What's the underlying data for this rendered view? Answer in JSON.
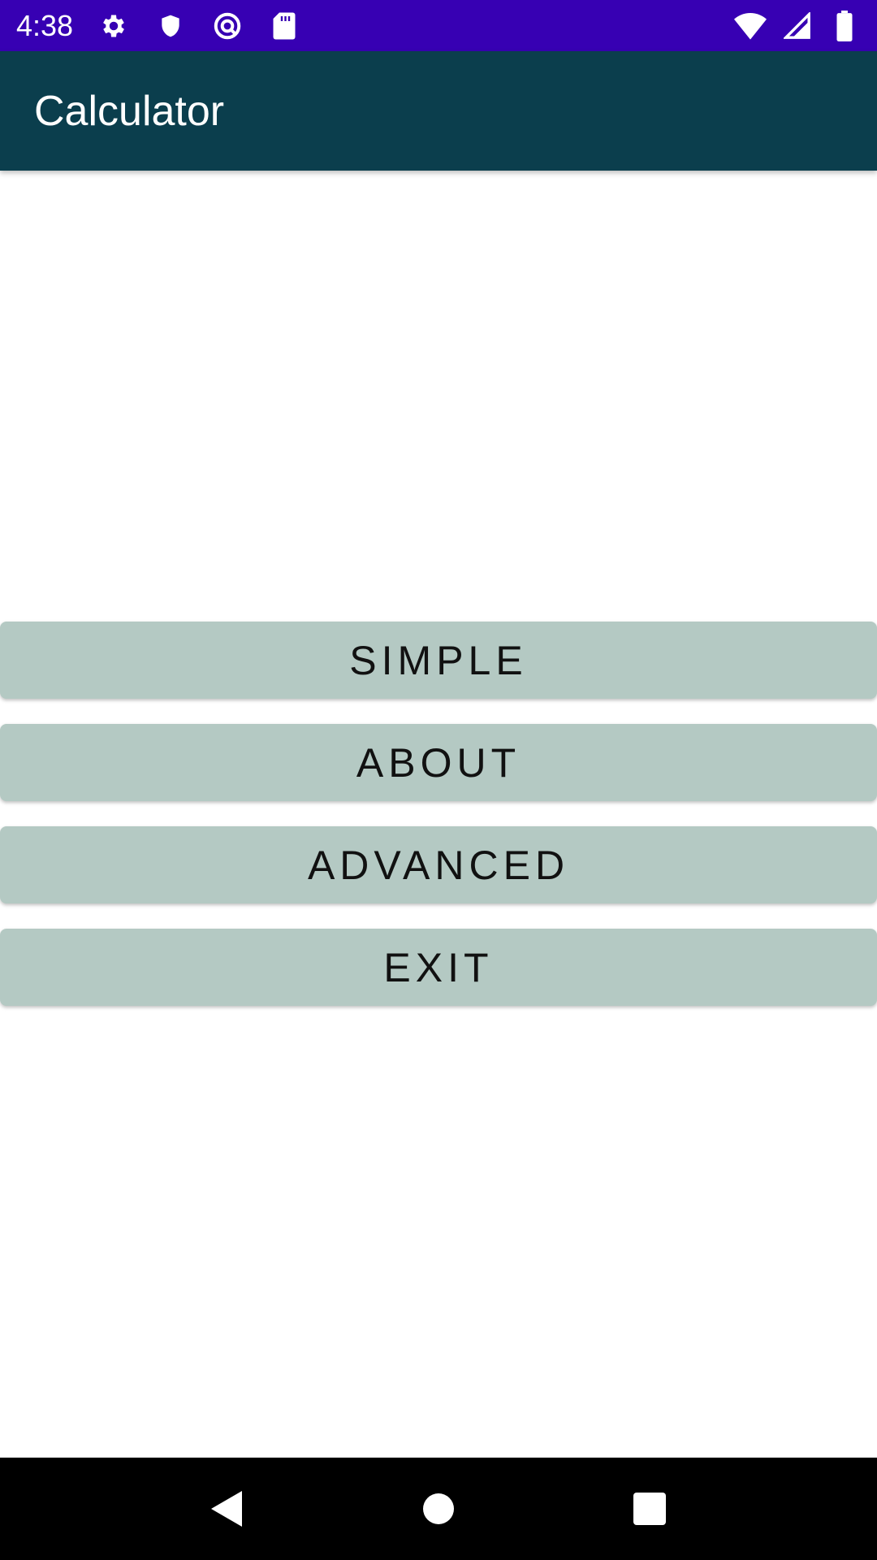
{
  "status_bar": {
    "time": "4:38",
    "icons": [
      "gear-icon",
      "shield-icon",
      "vpn-key-icon",
      "sd-card-icon",
      "wifi-icon",
      "signal-icon",
      "battery-icon"
    ],
    "bg_color": "#3700b3"
  },
  "app_bar": {
    "title": "Calculator",
    "bg_color": "#0b3e4d"
  },
  "menu": {
    "button_color": "#b4c9c3",
    "buttons": [
      {
        "label": "SIMPLE"
      },
      {
        "label": "ABOUT"
      },
      {
        "label": "ADVANCED"
      },
      {
        "label": "EXIT"
      }
    ]
  },
  "nav_bar": {
    "bg_color": "#000000",
    "icons": [
      "back-icon",
      "home-icon",
      "recents-icon"
    ]
  }
}
